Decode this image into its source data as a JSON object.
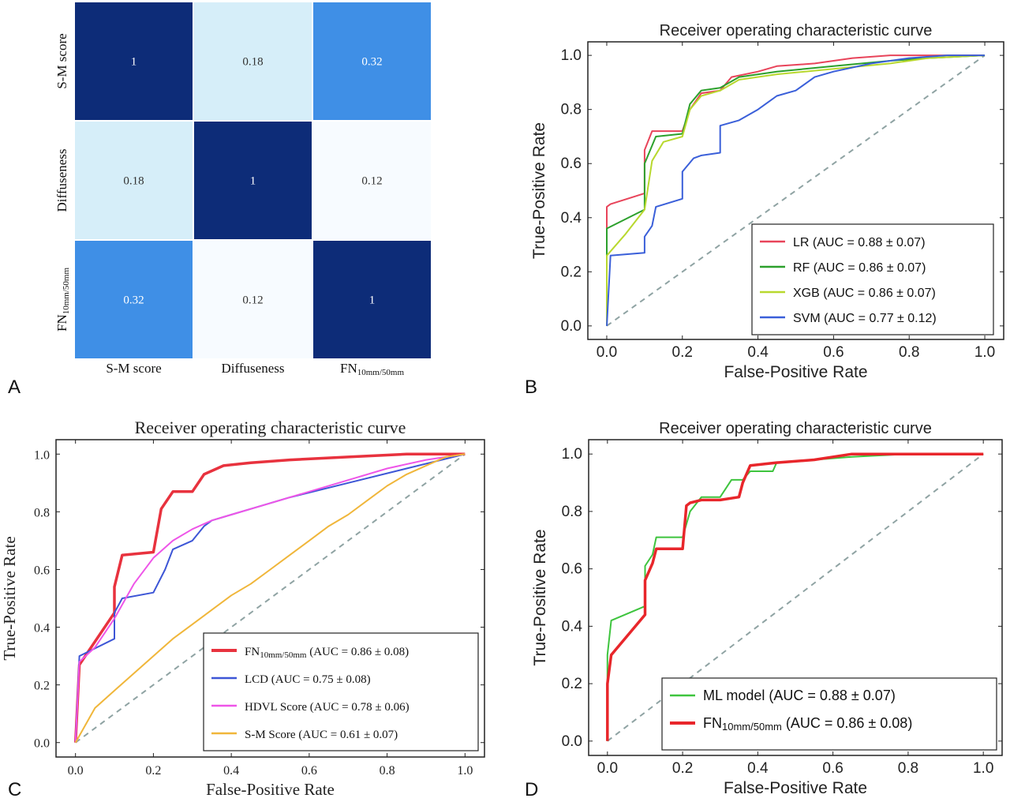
{
  "figure": {
    "panel_letters": [
      "A",
      "B",
      "C",
      "D"
    ]
  },
  "chart_data": [
    {
      "panel": "A",
      "type": "heatmap",
      "title": "",
      "rows": [
        "S-M score",
        "Diffuseness",
        "FN10mm/50mm"
      ],
      "row_labels": [
        {
          "main": "S-M score",
          "sub": ""
        },
        {
          "main": "Diffuseness",
          "sub": ""
        },
        {
          "main": "FN",
          "sub": "10mm/50mm"
        }
      ],
      "columns": [
        "S-M score",
        "Diffuseness",
        "FN10mm/50mm"
      ],
      "col_labels": [
        {
          "main": "S-M score",
          "sub": ""
        },
        {
          "main": "Diffuseness",
          "sub": ""
        },
        {
          "main": "FN",
          "sub": "10mm/50mm"
        }
      ],
      "values": [
        [
          1,
          0.18,
          0.32
        ],
        [
          0.18,
          1,
          0.12
        ],
        [
          0.32,
          0.12,
          1
        ]
      ],
      "cell_labels": [
        [
          "1",
          "0.18",
          "0.32"
        ],
        [
          "0.18",
          "1",
          "0.12"
        ],
        [
          "0.32",
          "0.12",
          "1"
        ]
      ],
      "colors": {
        "low": "#f7fbff",
        "mid": "#3f8fe6",
        "high": "#0d2c78"
      }
    },
    {
      "panel": "B",
      "type": "line",
      "title": "Receiver operating characteristic curve",
      "xlabel": "False-Positive Rate",
      "ylabel": "True-Positive Rate",
      "xlim": [
        -0.05,
        1.05
      ],
      "ylim": [
        -0.05,
        1.05
      ],
      "xticks": [
        "0.0",
        "0.2",
        "0.4",
        "0.6",
        "0.8",
        "1.0"
      ],
      "yticks": [
        "0.0",
        "0.2",
        "0.4",
        "0.6",
        "0.8",
        "1.0"
      ],
      "legend_position": "lower-right",
      "diagonal": true,
      "series": [
        {
          "name": "LR (AUC = 0.88 ± 0.07)",
          "label": {
            "main": "LR (AUC = 0.88 ± 0.07)"
          },
          "color": "#e8445a",
          "x": [
            0,
            0,
            0.01,
            0.1,
            0.1,
            0.12,
            0.15,
            0.2,
            0.22,
            0.25,
            0.3,
            0.33,
            0.4,
            0.45,
            0.55,
            0.65,
            0.75,
            0.85,
            1.0
          ],
          "y": [
            0,
            0.44,
            0.45,
            0.49,
            0.65,
            0.72,
            0.72,
            0.72,
            0.8,
            0.86,
            0.87,
            0.92,
            0.94,
            0.96,
            0.97,
            0.99,
            1.0,
            1.0,
            1.0
          ]
        },
        {
          "name": "RF (AUC = 0.86 ± 0.07)",
          "label": {
            "main": "RF (AUC = 0.86 ± 0.07)"
          },
          "color": "#2ca02c",
          "x": [
            0,
            0,
            0.1,
            0.1,
            0.13,
            0.2,
            0.22,
            0.25,
            0.3,
            0.35,
            0.45,
            0.6,
            0.75,
            0.85,
            1.0
          ],
          "y": [
            0,
            0.36,
            0.43,
            0.6,
            0.7,
            0.71,
            0.82,
            0.87,
            0.88,
            0.92,
            0.94,
            0.96,
            0.98,
            0.99,
            1.0
          ]
        },
        {
          "name": "XGB (AUC = 0.86 ± 0.07)",
          "label": {
            "main": "XGB (AUC = 0.86 ± 0.07)"
          },
          "color": "#b8d82e",
          "x": [
            0,
            0,
            0.05,
            0.1,
            0.12,
            0.15,
            0.2,
            0.22,
            0.25,
            0.3,
            0.35,
            0.45,
            0.6,
            0.75,
            0.85,
            1.0
          ],
          "y": [
            0,
            0.26,
            0.34,
            0.43,
            0.61,
            0.68,
            0.7,
            0.8,
            0.85,
            0.87,
            0.91,
            0.93,
            0.95,
            0.97,
            0.99,
            1.0
          ]
        },
        {
          "name": "SVM (AUC = 0.77 ± 0.12)",
          "label": {
            "main": "SVM (AUC = 0.77 ± 0.12)"
          },
          "color": "#3a5fd9",
          "x": [
            0,
            0.01,
            0.1,
            0.1,
            0.12,
            0.13,
            0.2,
            0.2,
            0.23,
            0.25,
            0.3,
            0.3,
            0.35,
            0.4,
            0.45,
            0.5,
            0.55,
            0.6,
            0.7,
            0.8,
            0.9,
            1.0
          ],
          "y": [
            0,
            0.26,
            0.27,
            0.33,
            0.37,
            0.44,
            0.47,
            0.57,
            0.62,
            0.63,
            0.64,
            0.74,
            0.76,
            0.8,
            0.85,
            0.87,
            0.92,
            0.94,
            0.97,
            0.99,
            1.0,
            1.0
          ]
        }
      ]
    },
    {
      "panel": "C",
      "type": "line",
      "title": "Receiver operating characteristic curve",
      "xlabel": "False-Positive Rate",
      "ylabel": "True-Positive Rate",
      "xlim": [
        -0.05,
        1.05
      ],
      "ylim": [
        -0.05,
        1.05
      ],
      "xticks": [
        "0.0",
        "0.2",
        "0.4",
        "0.6",
        "0.8",
        "1.0"
      ],
      "yticks": [
        "0.0",
        "0.2",
        "0.4",
        "0.6",
        "0.8",
        "1.0"
      ],
      "legend_position": "lower-right",
      "diagonal": true,
      "series": [
        {
          "name": "FN10mm/50mm (AUC = 0.86 ± 0.08)",
          "label": {
            "main": "FN",
            "sub": "10mm/50mm",
            "rest": " (AUC = 0.86 ± 0.08)"
          },
          "color": "#e8323e",
          "bold": true,
          "x": [
            0,
            0.01,
            0.1,
            0.1,
            0.12,
            0.2,
            0.22,
            0.25,
            0.3,
            0.33,
            0.38,
            0.45,
            0.55,
            0.7,
            0.85,
            1.0
          ],
          "y": [
            0,
            0.27,
            0.45,
            0.54,
            0.65,
            0.66,
            0.81,
            0.87,
            0.87,
            0.93,
            0.96,
            0.97,
            0.98,
            0.99,
            1.0,
            1.0
          ]
        },
        {
          "name": "LCD (AUC = 0.75 ± 0.08)",
          "label": {
            "main": "LCD (AUC = 0.75 ± 0.08)"
          },
          "color": "#3d56d6",
          "x": [
            0,
            0.01,
            0.1,
            0.1,
            0.12,
            0.2,
            0.23,
            0.25,
            0.3,
            0.33,
            0.35,
            0.4,
            0.45,
            0.55,
            0.7,
            0.85,
            1.0
          ],
          "y": [
            0,
            0.3,
            0.36,
            0.45,
            0.5,
            0.52,
            0.6,
            0.67,
            0.7,
            0.75,
            0.77,
            0.79,
            0.81,
            0.85,
            0.9,
            0.95,
            1.0
          ]
        },
        {
          "name": "HDVL Score (AUC = 0.78 ± 0.06)",
          "label": {
            "main": "HDVL Score (AUC = 0.78 ± 0.06)"
          },
          "color": "#ee55e8",
          "x": [
            0,
            0.01,
            0.05,
            0.1,
            0.15,
            0.2,
            0.25,
            0.3,
            0.35,
            0.4,
            0.5,
            0.6,
            0.7,
            0.8,
            0.9,
            1.0
          ],
          "y": [
            0,
            0.28,
            0.33,
            0.43,
            0.55,
            0.64,
            0.7,
            0.74,
            0.77,
            0.79,
            0.83,
            0.87,
            0.91,
            0.95,
            0.98,
            1.0
          ]
        },
        {
          "name": "S-M Score (AUC = 0.61 ± 0.07)",
          "label": {
            "main": "S-M Score (AUC = 0.61 ± 0.07)"
          },
          "color": "#f0b63a",
          "x": [
            0,
            0.05,
            0.1,
            0.15,
            0.2,
            0.25,
            0.3,
            0.35,
            0.4,
            0.45,
            0.5,
            0.55,
            0.6,
            0.65,
            0.7,
            0.75,
            0.8,
            0.85,
            0.9,
            0.95,
            1.0
          ],
          "y": [
            0,
            0.12,
            0.18,
            0.24,
            0.3,
            0.36,
            0.41,
            0.46,
            0.51,
            0.55,
            0.6,
            0.65,
            0.7,
            0.75,
            0.79,
            0.84,
            0.89,
            0.93,
            0.96,
            0.99,
            1.0
          ]
        }
      ]
    },
    {
      "panel": "D",
      "type": "line",
      "title": "Receiver operating characteristic curve",
      "xlabel": "False-Positive Rate",
      "ylabel": "True-Positive Rate",
      "xlim": [
        -0.05,
        1.05
      ],
      "ylim": [
        -0.05,
        1.05
      ],
      "xticks": [
        "0.0",
        "0.2",
        "0.4",
        "0.6",
        "0.8",
        "1.0"
      ],
      "yticks": [
        "0.0",
        "0.2",
        "0.4",
        "0.6",
        "0.8",
        "1.0"
      ],
      "legend_position": "lower-right",
      "diagonal": true,
      "series": [
        {
          "name": "ML model (AUC = 0.88 ± 0.07)",
          "label": {
            "main": "ML model (AUC = 0.88 ± 0.07)"
          },
          "color": "#3ec43e",
          "x": [
            0,
            0,
            0.01,
            0.1,
            0.1,
            0.12,
            0.13,
            0.2,
            0.22,
            0.25,
            0.3,
            0.33,
            0.36,
            0.38,
            0.44,
            0.45,
            0.55,
            0.65,
            0.8,
            1.0
          ],
          "y": [
            0,
            0.3,
            0.42,
            0.47,
            0.61,
            0.65,
            0.71,
            0.71,
            0.8,
            0.85,
            0.85,
            0.91,
            0.91,
            0.94,
            0.94,
            0.97,
            0.98,
            0.99,
            1.0,
            1.0
          ]
        },
        {
          "name": "FN10mm/50mm (AUC = 0.86 ± 0.08)",
          "label": {
            "main": "FN",
            "sub": "10mm/50mm",
            "rest": " (AUC = 0.86 ± 0.08)"
          },
          "color": "#e8262b",
          "bold": true,
          "x": [
            0,
            0,
            0.01,
            0.1,
            0.1,
            0.12,
            0.13,
            0.2,
            0.21,
            0.22,
            0.25,
            0.3,
            0.35,
            0.36,
            0.38,
            0.45,
            0.55,
            0.65,
            0.8,
            1.0
          ],
          "y": [
            0,
            0.2,
            0.3,
            0.44,
            0.56,
            0.62,
            0.67,
            0.67,
            0.82,
            0.83,
            0.84,
            0.84,
            0.85,
            0.9,
            0.96,
            0.97,
            0.98,
            1.0,
            1.0,
            1.0
          ]
        }
      ]
    }
  ]
}
